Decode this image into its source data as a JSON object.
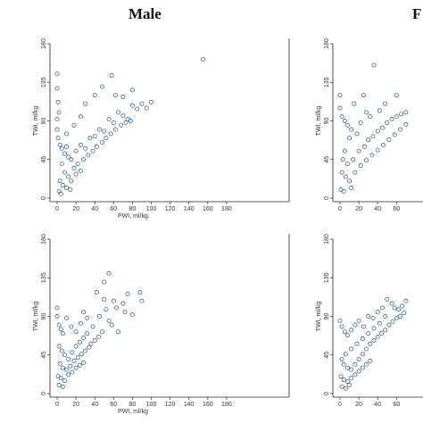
{
  "titles": {
    "left": "Male",
    "right": "F"
  },
  "chart_data": [
    {
      "type": "scatter",
      "panel": "top-left",
      "title": "Male",
      "xlabel": "PWI, ml/kg",
      "ylabel": "TWI, ml/kg",
      "xlim": [
        0,
        180
      ],
      "ylim": [
        0,
        180
      ],
      "xticks": [
        "0",
        "20",
        "40",
        "60",
        "80",
        "100",
        "120",
        "140",
        "160",
        "180"
      ],
      "yticks": [
        "0",
        "45",
        "90",
        "135",
        "180"
      ],
      "points": [
        [
          0,
          145
        ],
        [
          0,
          128
        ],
        [
          1,
          112
        ],
        [
          2,
          100
        ],
        [
          0,
          92
        ],
        [
          0,
          80
        ],
        [
          1,
          70
        ],
        [
          3,
          62
        ],
        [
          5,
          58
        ],
        [
          8,
          52
        ],
        [
          10,
          60
        ],
        [
          12,
          48
        ],
        [
          15,
          45
        ],
        [
          20,
          55
        ],
        [
          25,
          62
        ],
        [
          30,
          58
        ],
        [
          35,
          70
        ],
        [
          40,
          72
        ],
        [
          45,
          80
        ],
        [
          50,
          78
        ],
        [
          55,
          92
        ],
        [
          60,
          88
        ],
        [
          65,
          100
        ],
        [
          70,
          96
        ],
        [
          75,
          92
        ],
        [
          80,
          108
        ],
        [
          85,
          104
        ],
        [
          90,
          110
        ],
        [
          95,
          105
        ],
        [
          100,
          112
        ],
        [
          62,
          120
        ],
        [
          70,
          118
        ],
        [
          80,
          126
        ],
        [
          58,
          143
        ],
        [
          48,
          130
        ],
        [
          40,
          120
        ],
        [
          30,
          110
        ],
        [
          25,
          95
        ],
        [
          18,
          85
        ],
        [
          10,
          75
        ],
        [
          5,
          40
        ],
        [
          8,
          30
        ],
        [
          12,
          25
        ],
        [
          18,
          35
        ],
        [
          22,
          40
        ],
        [
          28,
          45
        ],
        [
          33,
          50
        ],
        [
          38,
          55
        ],
        [
          42,
          60
        ],
        [
          48,
          65
        ],
        [
          52,
          70
        ],
        [
          57,
          75
        ],
        [
          62,
          80
        ],
        [
          68,
          85
        ],
        [
          73,
          88
        ],
        [
          78,
          90
        ],
        [
          3,
          20
        ],
        [
          6,
          15
        ],
        [
          10,
          12
        ],
        [
          15,
          20
        ],
        [
          20,
          28
        ],
        [
          25,
          32
        ],
        [
          155,
          162
        ],
        [
          2,
          8
        ],
        [
          4,
          5
        ],
        [
          14,
          10
        ]
      ]
    },
    {
      "type": "scatter",
      "panel": "top-right",
      "title": "F",
      "xlabel": "",
      "ylabel": "TWI, ml/kg",
      "xlim": [
        0,
        180
      ],
      "ylim": [
        0,
        180
      ],
      "xticks": [
        "0",
        "20",
        "40",
        "60"
      ],
      "yticks": [
        "0",
        "45",
        "90",
        "135",
        "180"
      ],
      "points": [
        [
          0,
          120
        ],
        [
          0,
          105
        ],
        [
          2,
          95
        ],
        [
          5,
          90
        ],
        [
          8,
          85
        ],
        [
          12,
          80
        ],
        [
          18,
          75
        ],
        [
          22,
          88
        ],
        [
          28,
          100
        ],
        [
          32,
          95
        ],
        [
          36,
          155
        ],
        [
          25,
          120
        ],
        [
          15,
          110
        ],
        [
          10,
          70
        ],
        [
          5,
          55
        ],
        [
          3,
          45
        ],
        [
          8,
          40
        ],
        [
          14,
          45
        ],
        [
          20,
          55
        ],
        [
          26,
          60
        ],
        [
          30,
          68
        ],
        [
          35,
          72
        ],
        [
          40,
          78
        ],
        [
          45,
          82
        ],
        [
          50,
          88
        ],
        [
          55,
          92
        ],
        [
          60,
          95
        ],
        [
          65,
          98
        ],
        [
          70,
          100
        ],
        [
          2,
          30
        ],
        [
          6,
          25
        ],
        [
          10,
          20
        ],
        [
          16,
          30
        ],
        [
          22,
          38
        ],
        [
          28,
          44
        ],
        [
          34,
          50
        ],
        [
          40,
          56
        ],
        [
          46,
          62
        ],
        [
          52,
          68
        ],
        [
          58,
          74
        ],
        [
          64,
          80
        ],
        [
          70,
          86
        ],
        [
          1,
          10
        ],
        [
          4,
          8
        ],
        [
          12,
          12
        ],
        [
          48,
          110
        ],
        [
          42,
          102
        ],
        [
          60,
          120
        ]
      ]
    },
    {
      "type": "scatter",
      "panel": "bottom-left",
      "title": "",
      "xlabel": "PWI, ml/kg",
      "ylabel": "TWI, ml/kg",
      "xlim": [
        0,
        180
      ],
      "ylim": [
        0,
        180
      ],
      "xticks": [
        "0",
        "20",
        "40",
        "60",
        "80",
        "100",
        "120",
        "140",
        "160",
        "180"
      ],
      "yticks": [
        "0",
        "45",
        "90",
        "135",
        "180"
      ],
      "points": [
        [
          0,
          100
        ],
        [
          0,
          90
        ],
        [
          2,
          80
        ],
        [
          4,
          75
        ],
        [
          6,
          70
        ],
        [
          10,
          88
        ],
        [
          15,
          78
        ],
        [
          20,
          72
        ],
        [
          25,
          82
        ],
        [
          28,
          95
        ],
        [
          32,
          88
        ],
        [
          38,
          78
        ],
        [
          42,
          118
        ],
        [
          45,
          90
        ],
        [
          50,
          110
        ],
        [
          52,
          98
        ],
        [
          55,
          85
        ],
        [
          58,
          80
        ],
        [
          60,
          108
        ],
        [
          63,
          100
        ],
        [
          65,
          72
        ],
        [
          70,
          105
        ],
        [
          72,
          95
        ],
        [
          75,
          116
        ],
        [
          80,
          92
        ],
        [
          88,
          118
        ],
        [
          90,
          108
        ],
        [
          50,
          130
        ],
        [
          55,
          140
        ],
        [
          2,
          55
        ],
        [
          5,
          50
        ],
        [
          8,
          45
        ],
        [
          12,
          40
        ],
        [
          16,
          48
        ],
        [
          20,
          55
        ],
        [
          24,
          60
        ],
        [
          28,
          65
        ],
        [
          32,
          70
        ],
        [
          36,
          58
        ],
        [
          40,
          62
        ],
        [
          44,
          66
        ],
        [
          48,
          72
        ],
        [
          3,
          35
        ],
        [
          6,
          30
        ],
        [
          10,
          28
        ],
        [
          14,
          32
        ],
        [
          18,
          38
        ],
        [
          22,
          42
        ],
        [
          26,
          46
        ],
        [
          30,
          50
        ],
        [
          34,
          54
        ],
        [
          1,
          20
        ],
        [
          4,
          18
        ],
        [
          8,
          15
        ],
        [
          12,
          22
        ],
        [
          16,
          25
        ],
        [
          20,
          30
        ],
        [
          24,
          33
        ],
        [
          28,
          36
        ],
        [
          2,
          10
        ],
        [
          6,
          8
        ]
      ]
    },
    {
      "type": "scatter",
      "panel": "bottom-right",
      "title": "",
      "xlabel": "",
      "ylabel": "TWI, ml/kg",
      "xlim": [
        0,
        180
      ],
      "ylim": [
        0,
        180
      ],
      "xticks": [
        "0",
        "20",
        "40",
        "60"
      ],
      "yticks": [
        "0",
        "45",
        "90",
        "135",
        "180"
      ],
      "points": [
        [
          0,
          85
        ],
        [
          2,
          78
        ],
        [
          5,
          72
        ],
        [
          8,
          68
        ],
        [
          12,
          74
        ],
        [
          16,
          80
        ],
        [
          20,
          85
        ],
        [
          25,
          78
        ],
        [
          30,
          90
        ],
        [
          35,
          88
        ],
        [
          40,
          95
        ],
        [
          45,
          100
        ],
        [
          50,
          110
        ],
        [
          55,
          105
        ],
        [
          58,
          100
        ],
        [
          62,
          98
        ],
        [
          66,
          102
        ],
        [
          70,
          108
        ],
        [
          48,
          90
        ],
        [
          42,
          82
        ],
        [
          36,
          76
        ],
        [
          30,
          70
        ],
        [
          24,
          64
        ],
        [
          18,
          58
        ],
        [
          12,
          52
        ],
        [
          6,
          46
        ],
        [
          2,
          40
        ],
        [
          4,
          34
        ],
        [
          8,
          30
        ],
        [
          12,
          28
        ],
        [
          16,
          34
        ],
        [
          20,
          40
        ],
        [
          24,
          46
        ],
        [
          28,
          52
        ],
        [
          32,
          58
        ],
        [
          36,
          62
        ],
        [
          40,
          66
        ],
        [
          44,
          70
        ],
        [
          48,
          74
        ],
        [
          52,
          80
        ],
        [
          56,
          84
        ],
        [
          60,
          88
        ],
        [
          64,
          90
        ],
        [
          68,
          94
        ],
        [
          1,
          20
        ],
        [
          4,
          16
        ],
        [
          8,
          14
        ],
        [
          12,
          18
        ],
        [
          16,
          22
        ],
        [
          20,
          26
        ],
        [
          24,
          30
        ],
        [
          28,
          34
        ],
        [
          32,
          38
        ],
        [
          2,
          8
        ],
        [
          6,
          6
        ],
        [
          10,
          10
        ]
      ]
    }
  ]
}
